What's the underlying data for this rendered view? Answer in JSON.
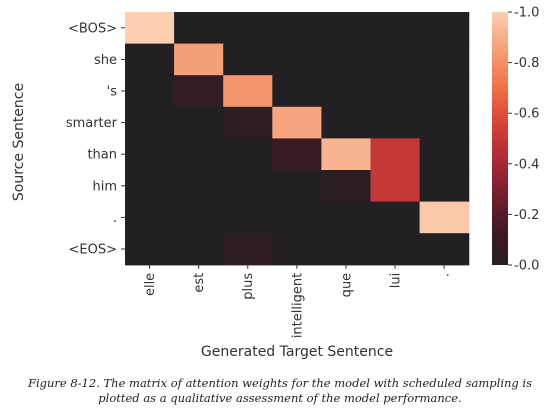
{
  "chart_data": {
    "type": "heatmap",
    "xlabel": "Generated Target Sentence",
    "ylabel": "Source Sentence",
    "x_tick_labels": [
      "elle",
      "est",
      "plus",
      "intelligent",
      "que",
      "lui",
      "."
    ],
    "y_tick_labels": [
      "<BOS>",
      "she",
      "'s",
      "smarter",
      "than",
      "him",
      ".",
      "<EOS>"
    ],
    "values": [
      [
        1.0,
        0.0,
        0.0,
        0.0,
        0.0,
        0.0,
        0.0
      ],
      [
        0.0,
        0.85,
        0.0,
        0.0,
        0.0,
        0.0,
        0.0
      ],
      [
        0.0,
        0.08,
        0.82,
        0.0,
        0.0,
        0.0,
        0.0
      ],
      [
        0.0,
        0.0,
        0.05,
        0.87,
        0.0,
        0.0,
        0.0
      ],
      [
        0.0,
        0.0,
        0.0,
        0.1,
        0.92,
        0.5,
        0.0
      ],
      [
        0.0,
        0.0,
        0.0,
        0.0,
        0.04,
        0.5,
        0.0
      ],
      [
        0.0,
        0.0,
        0.0,
        0.0,
        0.0,
        0.0,
        0.98
      ],
      [
        0.0,
        0.0,
        0.05,
        0.0,
        0.0,
        0.0,
        0.0
      ]
    ],
    "colorbar": {
      "ticks": [
        "0.0",
        "0.2",
        "0.4",
        "0.6",
        "0.8",
        "1.0"
      ],
      "range": [
        0,
        1
      ]
    },
    "colormap_stops": [
      "#232023",
      "#3a1a22",
      "#5d1d2a",
      "#8c2134",
      "#b42e36",
      "#d3433a",
      "#ea6640",
      "#f3895e",
      "#f6ab86",
      "#fbcfb2"
    ]
  },
  "caption": "Figure 8-12. The matrix of attention weights for the model with scheduled sampling is plotted as a qualitative assessment of the model performance."
}
